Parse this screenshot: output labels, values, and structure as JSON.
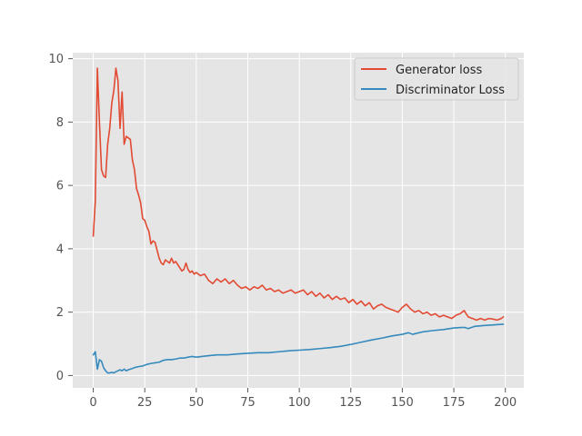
{
  "chart_data": {
    "type": "line",
    "style": "ggplot",
    "title": "",
    "xlabel": "",
    "ylabel": "",
    "xlim": [
      -9.95,
      208.95
    ],
    "ylim": [
      -0.39,
      10.19
    ],
    "xticks": [
      0,
      25,
      50,
      75,
      100,
      125,
      150,
      175,
      200
    ],
    "yticks": [
      0,
      2,
      4,
      6,
      8,
      10
    ],
    "grid": true,
    "legend_position": "top-right",
    "background_color": "#e5e5e5",
    "grid_color": "#ffffff",
    "series": [
      {
        "name": "Generator loss",
        "color": "#e24a33",
        "x": [
          0,
          1,
          2,
          3,
          4,
          5,
          6,
          7,
          8,
          9,
          10,
          11,
          12,
          13,
          14,
          15,
          16,
          17,
          18,
          19,
          20,
          21,
          22,
          23,
          24,
          25,
          26,
          27,
          28,
          29,
          30,
          31,
          32,
          33,
          34,
          35,
          36,
          37,
          38,
          39,
          40,
          41,
          42,
          43,
          44,
          45,
          46,
          47,
          48,
          49,
          50,
          52,
          54,
          56,
          58,
          60,
          62,
          64,
          66,
          68,
          70,
          72,
          74,
          76,
          78,
          80,
          82,
          84,
          86,
          88,
          90,
          92,
          94,
          96,
          98,
          100,
          102,
          104,
          106,
          108,
          110,
          112,
          114,
          116,
          118,
          120,
          122,
          124,
          126,
          128,
          130,
          132,
          134,
          136,
          138,
          140,
          142,
          144,
          146,
          148,
          150,
          152,
          154,
          156,
          158,
          160,
          162,
          164,
          166,
          168,
          170,
          172,
          174,
          176,
          178,
          180,
          182,
          184,
          186,
          188,
          190,
          192,
          194,
          196,
          198,
          199
        ],
        "y": [
          4.4,
          5.5,
          9.7,
          8.0,
          6.5,
          6.3,
          6.25,
          7.3,
          7.8,
          8.6,
          9.0,
          9.7,
          9.3,
          7.8,
          8.95,
          7.3,
          7.55,
          7.5,
          7.45,
          6.8,
          6.5,
          5.9,
          5.7,
          5.45,
          4.95,
          4.9,
          4.7,
          4.55,
          4.15,
          4.25,
          4.2,
          3.95,
          3.7,
          3.55,
          3.5,
          3.65,
          3.6,
          3.55,
          3.7,
          3.55,
          3.6,
          3.5,
          3.4,
          3.3,
          3.35,
          3.55,
          3.35,
          3.25,
          3.3,
          3.2,
          3.25,
          3.15,
          3.2,
          3.0,
          2.9,
          3.05,
          2.95,
          3.05,
          2.9,
          3.0,
          2.85,
          2.75,
          2.8,
          2.7,
          2.8,
          2.75,
          2.85,
          2.7,
          2.75,
          2.65,
          2.7,
          2.6,
          2.65,
          2.7,
          2.6,
          2.65,
          2.7,
          2.55,
          2.65,
          2.5,
          2.6,
          2.45,
          2.55,
          2.4,
          2.5,
          2.4,
          2.45,
          2.3,
          2.4,
          2.25,
          2.35,
          2.2,
          2.3,
          2.1,
          2.2,
          2.25,
          2.15,
          2.1,
          2.05,
          2.0,
          2.15,
          2.25,
          2.1,
          2.0,
          2.05,
          1.95,
          2.0,
          1.9,
          1.95,
          1.85,
          1.9,
          1.85,
          1.8,
          1.9,
          1.95,
          2.05,
          1.85,
          1.8,
          1.75,
          1.8,
          1.75,
          1.8,
          1.78,
          1.75,
          1.8,
          1.85
        ]
      },
      {
        "name": "Discriminator Loss",
        "color": "#348abd",
        "x": [
          0,
          1,
          2,
          3,
          4,
          5,
          6,
          7,
          8,
          9,
          10,
          11,
          12,
          13,
          14,
          15,
          16,
          17,
          18,
          19,
          20,
          22,
          24,
          26,
          28,
          30,
          32,
          34,
          36,
          38,
          40,
          42,
          44,
          46,
          48,
          50,
          55,
          60,
          65,
          70,
          75,
          80,
          85,
          90,
          95,
          100,
          105,
          110,
          115,
          120,
          125,
          130,
          135,
          140,
          145,
          150,
          153,
          155,
          160,
          165,
          170,
          175,
          180,
          182,
          185,
          190,
          195,
          199
        ],
        "y": [
          0.65,
          0.75,
          0.2,
          0.5,
          0.45,
          0.25,
          0.15,
          0.08,
          0.08,
          0.1,
          0.08,
          0.12,
          0.15,
          0.18,
          0.15,
          0.2,
          0.15,
          0.18,
          0.2,
          0.22,
          0.25,
          0.28,
          0.3,
          0.35,
          0.38,
          0.4,
          0.42,
          0.48,
          0.5,
          0.5,
          0.52,
          0.55,
          0.55,
          0.58,
          0.6,
          0.58,
          0.62,
          0.65,
          0.65,
          0.68,
          0.7,
          0.72,
          0.72,
          0.75,
          0.78,
          0.8,
          0.82,
          0.85,
          0.88,
          0.92,
          0.98,
          1.05,
          1.12,
          1.18,
          1.25,
          1.3,
          1.35,
          1.3,
          1.38,
          1.42,
          1.45,
          1.5,
          1.52,
          1.48,
          1.55,
          1.58,
          1.6,
          1.62
        ]
      }
    ]
  }
}
